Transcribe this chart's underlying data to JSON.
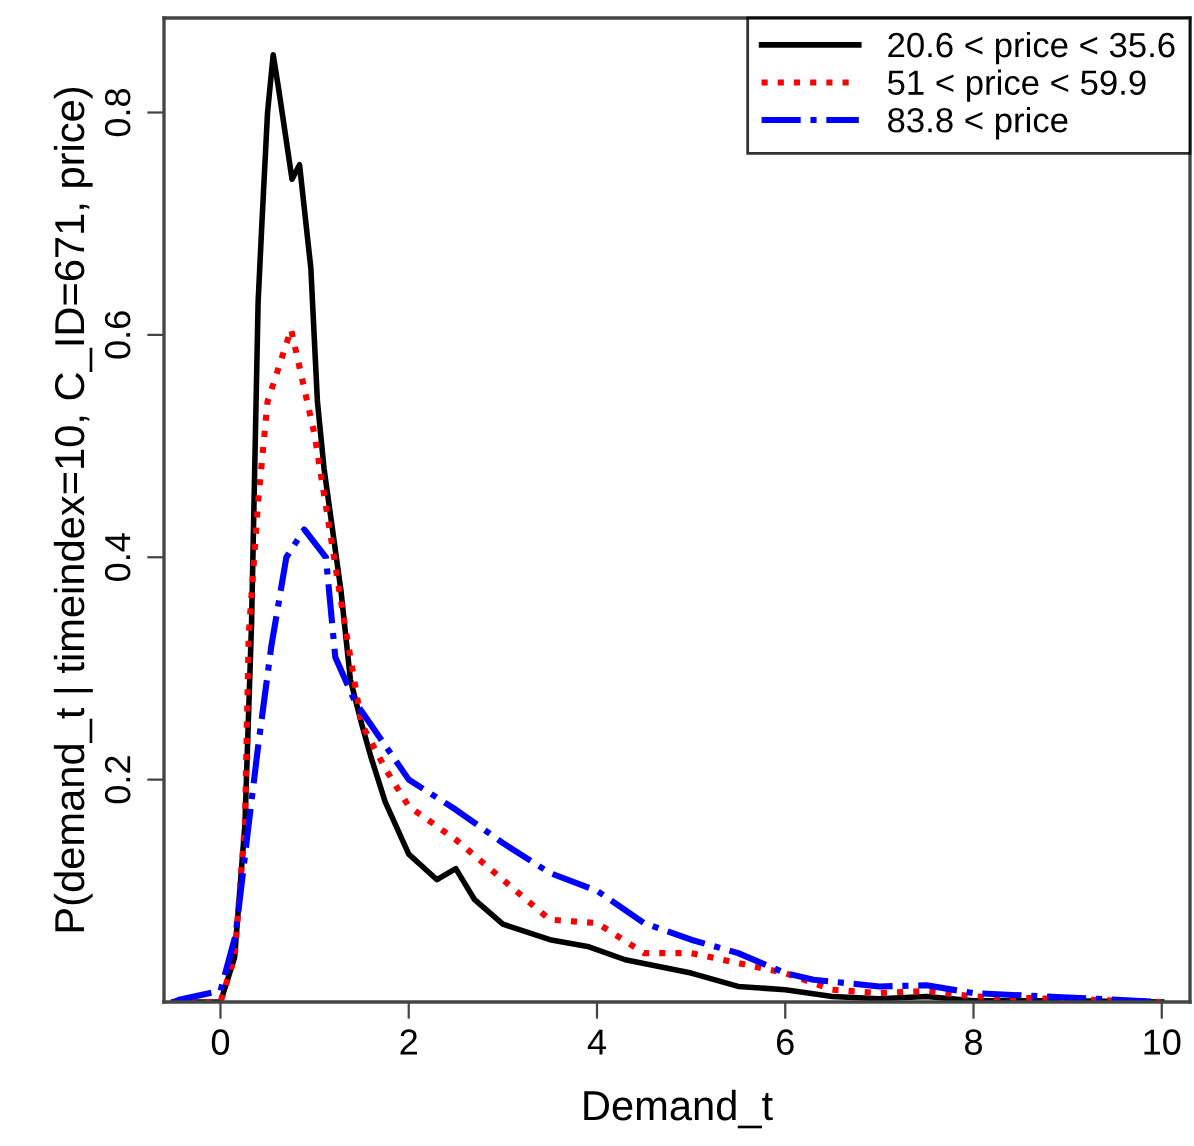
{
  "chart_data": {
    "type": "line",
    "xlabel": "Demand_t",
    "ylabel": "P(demand_t | timeindex=10, C_ID=671, price)",
    "xlim": [
      -0.6,
      10.3
    ],
    "ylim": [
      0,
      0.885
    ],
    "xticks": [
      0,
      2,
      4,
      6,
      8,
      10
    ],
    "yticks": [
      0.2,
      0.4,
      0.6,
      0.8
    ],
    "grid": false,
    "legend": "top right",
    "marker": "none",
    "series": [
      {
        "name": "20.6 < price < 35.6",
        "color": "#000000",
        "line_style": "solid",
        "x": [
          -0.5,
          0.0,
          0.15,
          0.26,
          0.33,
          0.4,
          0.44,
          0.5,
          0.56,
          0.62,
          0.76,
          0.84,
          0.96,
          1.03,
          1.1,
          1.28,
          1.38,
          1.5,
          1.6,
          1.75,
          2.0,
          2.3,
          2.5,
          2.7,
          3.0,
          3.5,
          3.9,
          4.3,
          5.0,
          5.5,
          6.0,
          6.5,
          7.0,
          7.5,
          8.0,
          9.0,
          10.0
        ],
        "values": [
          0.0,
          0.0,
          0.04,
          0.16,
          0.34,
          0.63,
          0.7,
          0.8,
          0.852,
          0.82,
          0.74,
          0.753,
          0.66,
          0.54,
          0.48,
          0.37,
          0.29,
          0.25,
          0.22,
          0.18,
          0.133,
          0.11,
          0.12,
          0.092,
          0.07,
          0.056,
          0.05,
          0.038,
          0.026,
          0.014,
          0.011,
          0.005,
          0.003,
          0.005,
          0.001,
          0.001,
          0.0
        ]
      },
      {
        "name": "51 < price < 59.9",
        "color": "#ff0000",
        "line_style": "dotted",
        "x": [
          -0.5,
          0.0,
          0.15,
          0.26,
          0.3,
          0.4,
          0.5,
          0.75,
          1.0,
          1.15,
          1.3,
          1.5,
          1.75,
          2.0,
          2.5,
          3.0,
          3.5,
          4.0,
          4.5,
          5.0,
          6.0,
          6.5,
          7.0,
          7.5,
          8.0,
          10.0
        ],
        "values": [
          0.0,
          0.0,
          0.04,
          0.16,
          0.33,
          0.45,
          0.54,
          0.605,
          0.51,
          0.43,
          0.35,
          0.25,
          0.21,
          0.176,
          0.146,
          0.11,
          0.074,
          0.071,
          0.044,
          0.044,
          0.026,
          0.011,
          0.008,
          0.01,
          0.005,
          0.0
        ]
      },
      {
        "name": "83.8 < price",
        "color": "#0000ff",
        "line_style": "dashdot",
        "x": [
          -0.5,
          -0.44,
          0.0,
          0.16,
          0.3,
          0.4,
          0.54,
          0.7,
          0.89,
          1.12,
          1.22,
          1.43,
          2.0,
          2.5,
          3.0,
          3.5,
          4.0,
          4.5,
          5.0,
          5.5,
          6.0,
          6.3,
          7.0,
          7.5,
          8.0,
          9.0,
          10.0
        ],
        "values": [
          0.0,
          0.002,
          0.01,
          0.06,
          0.16,
          0.23,
          0.32,
          0.4,
          0.425,
          0.4,
          0.31,
          0.27,
          0.2,
          0.173,
          0.143,
          0.116,
          0.1,
          0.071,
          0.056,
          0.044,
          0.026,
          0.02,
          0.014,
          0.015,
          0.008,
          0.004,
          0.0
        ]
      }
    ]
  }
}
